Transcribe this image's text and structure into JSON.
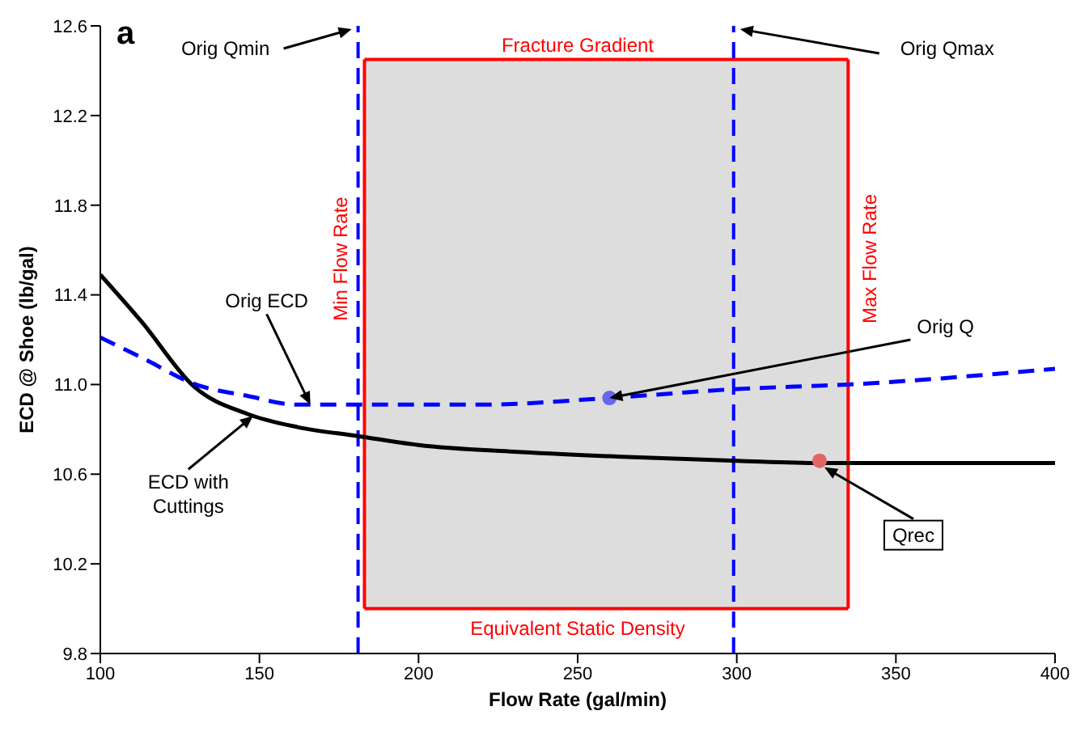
{
  "chart_data": {
    "type": "line",
    "xlabel": "Flow Rate (gal/min)",
    "ylabel": "ECD @ Shoe (lb/gal)",
    "xlim": [
      100,
      400
    ],
    "xticks": [
      100,
      150,
      200,
      250,
      300,
      350,
      400
    ],
    "ylim": [
      9.8,
      12.6
    ],
    "yticks": [
      9.8,
      10.2,
      10.6,
      {
        "value": 11,
        "label": "11.0"
      },
      11.4,
      11.8,
      12.2,
      12.6
    ],
    "grid": false,
    "series": [
      {
        "type": "line",
        "color": "#000000",
        "line_style": "solid",
        "marker": "none",
        "x": [
          100,
          113,
          129.5,
          146,
          162,
          181,
          200,
          230,
          260,
          300,
          326,
          400
        ],
        "values": [
          11.49,
          11.28,
          10.99,
          10.87,
          10.81,
          10.77,
          10.73,
          10.7,
          10.68,
          10.66,
          10.65,
          10.65
        ]
      },
      {
        "type": "line",
        "color": "#0000ff",
        "line_style": "dashed",
        "marker": "none",
        "x": [
          100,
          113,
          130,
          146,
          162,
          181,
          220,
          260,
          300,
          335,
          400
        ],
        "values": [
          11.21,
          11.12,
          11.0,
          10.95,
          10.91,
          10.91,
          10.91,
          10.94,
          10.98,
          11.0,
          11.07
        ]
      },
      {
        "type": "scatter",
        "color": "#6666ee",
        "marker": "circle",
        "x": [
          260
        ],
        "values": [
          10.94
        ]
      },
      {
        "type": "scatter",
        "color": "#e06666",
        "marker": "circle",
        "x": [
          326
        ],
        "values": [
          10.66
        ]
      }
    ],
    "bands": [
      {
        "axis": "x",
        "from": 183,
        "to": 335,
        "color": "#dddddd"
      }
    ],
    "ref_lines": [
      {
        "axis": "x",
        "value": 181,
        "label": "Orig Qmin",
        "color": "#0000ff",
        "line_style": "dashed"
      },
      {
        "axis": "x",
        "value": 299,
        "label": "Orig Qmax",
        "color": "#0000ff",
        "line_style": "dashed"
      },
      {
        "axis": "y",
        "value": 12.45,
        "label": "Fracture Gradient",
        "color": "#ff0000",
        "line_style": "solid"
      },
      {
        "axis": "y",
        "value": 10.0,
        "label": "Equivalent Static Density",
        "color": "#ff0000",
        "line_style": "solid"
      },
      {
        "axis": "x",
        "value": 183,
        "label": "Min Flow Rate",
        "color": "#ff0000",
        "line_style": "solid"
      },
      {
        "axis": "x",
        "value": 335,
        "label": "Max Flow Rate",
        "color": "#ff0000",
        "line_style": "solid"
      }
    ],
    "annotations": [
      "a",
      {
        "text": "Orig ECD",
        "x": 166,
        "y": 10.91
      },
      {
        "text": "ECD with Cuttings",
        "x": 148,
        "y": 10.86
      },
      {
        "text": "Orig Q",
        "x": 260,
        "y": 10.94
      },
      {
        "text": "Qrec",
        "x": 326,
        "y": 10.66
      }
    ]
  }
}
